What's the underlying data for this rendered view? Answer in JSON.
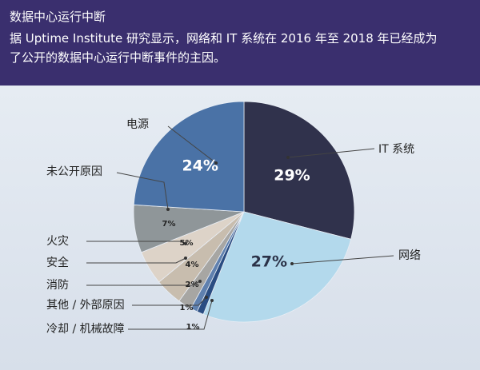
{
  "header": {
    "title": "数据中心运行中断",
    "subtitle_line1": "据 Uptime Institute 研究显示，网络和 IT 系统在 2016 年至 2018 年已经成为",
    "subtitle_line2": "了公开的数据中心运行中断事件的主因。"
  },
  "chart_data": {
    "type": "pie",
    "title": "数据中心运行中断",
    "slices": [
      {
        "label": "IT 系统",
        "value": 29,
        "display": "29%",
        "color": "#30324c"
      },
      {
        "label": "网络",
        "value": 27,
        "display": "27%",
        "color": "#b3d9ec"
      },
      {
        "label": "冷却 / 机械故障",
        "value": 1,
        "display": "1%",
        "color": "#2a4d82"
      },
      {
        "label": "其他 / 外部原因",
        "value": 1,
        "display": "1%",
        "color": "#5f80ae"
      },
      {
        "label": "消防",
        "value": 2,
        "display": "2%",
        "color": "#a7a6a3"
      },
      {
        "label": "安全",
        "value": 4,
        "display": "4%",
        "color": "#c8bdae"
      },
      {
        "label": "火灾",
        "value": 5,
        "display": "5%",
        "color": "#ddd3c8"
      },
      {
        "label": "未公开原因",
        "value": 7,
        "display": "7%",
        "color": "#8f9699"
      },
      {
        "label": "电源",
        "value": 24,
        "display": "24%",
        "color": "#4a72a6"
      }
    ],
    "legend": "callout-labels"
  }
}
